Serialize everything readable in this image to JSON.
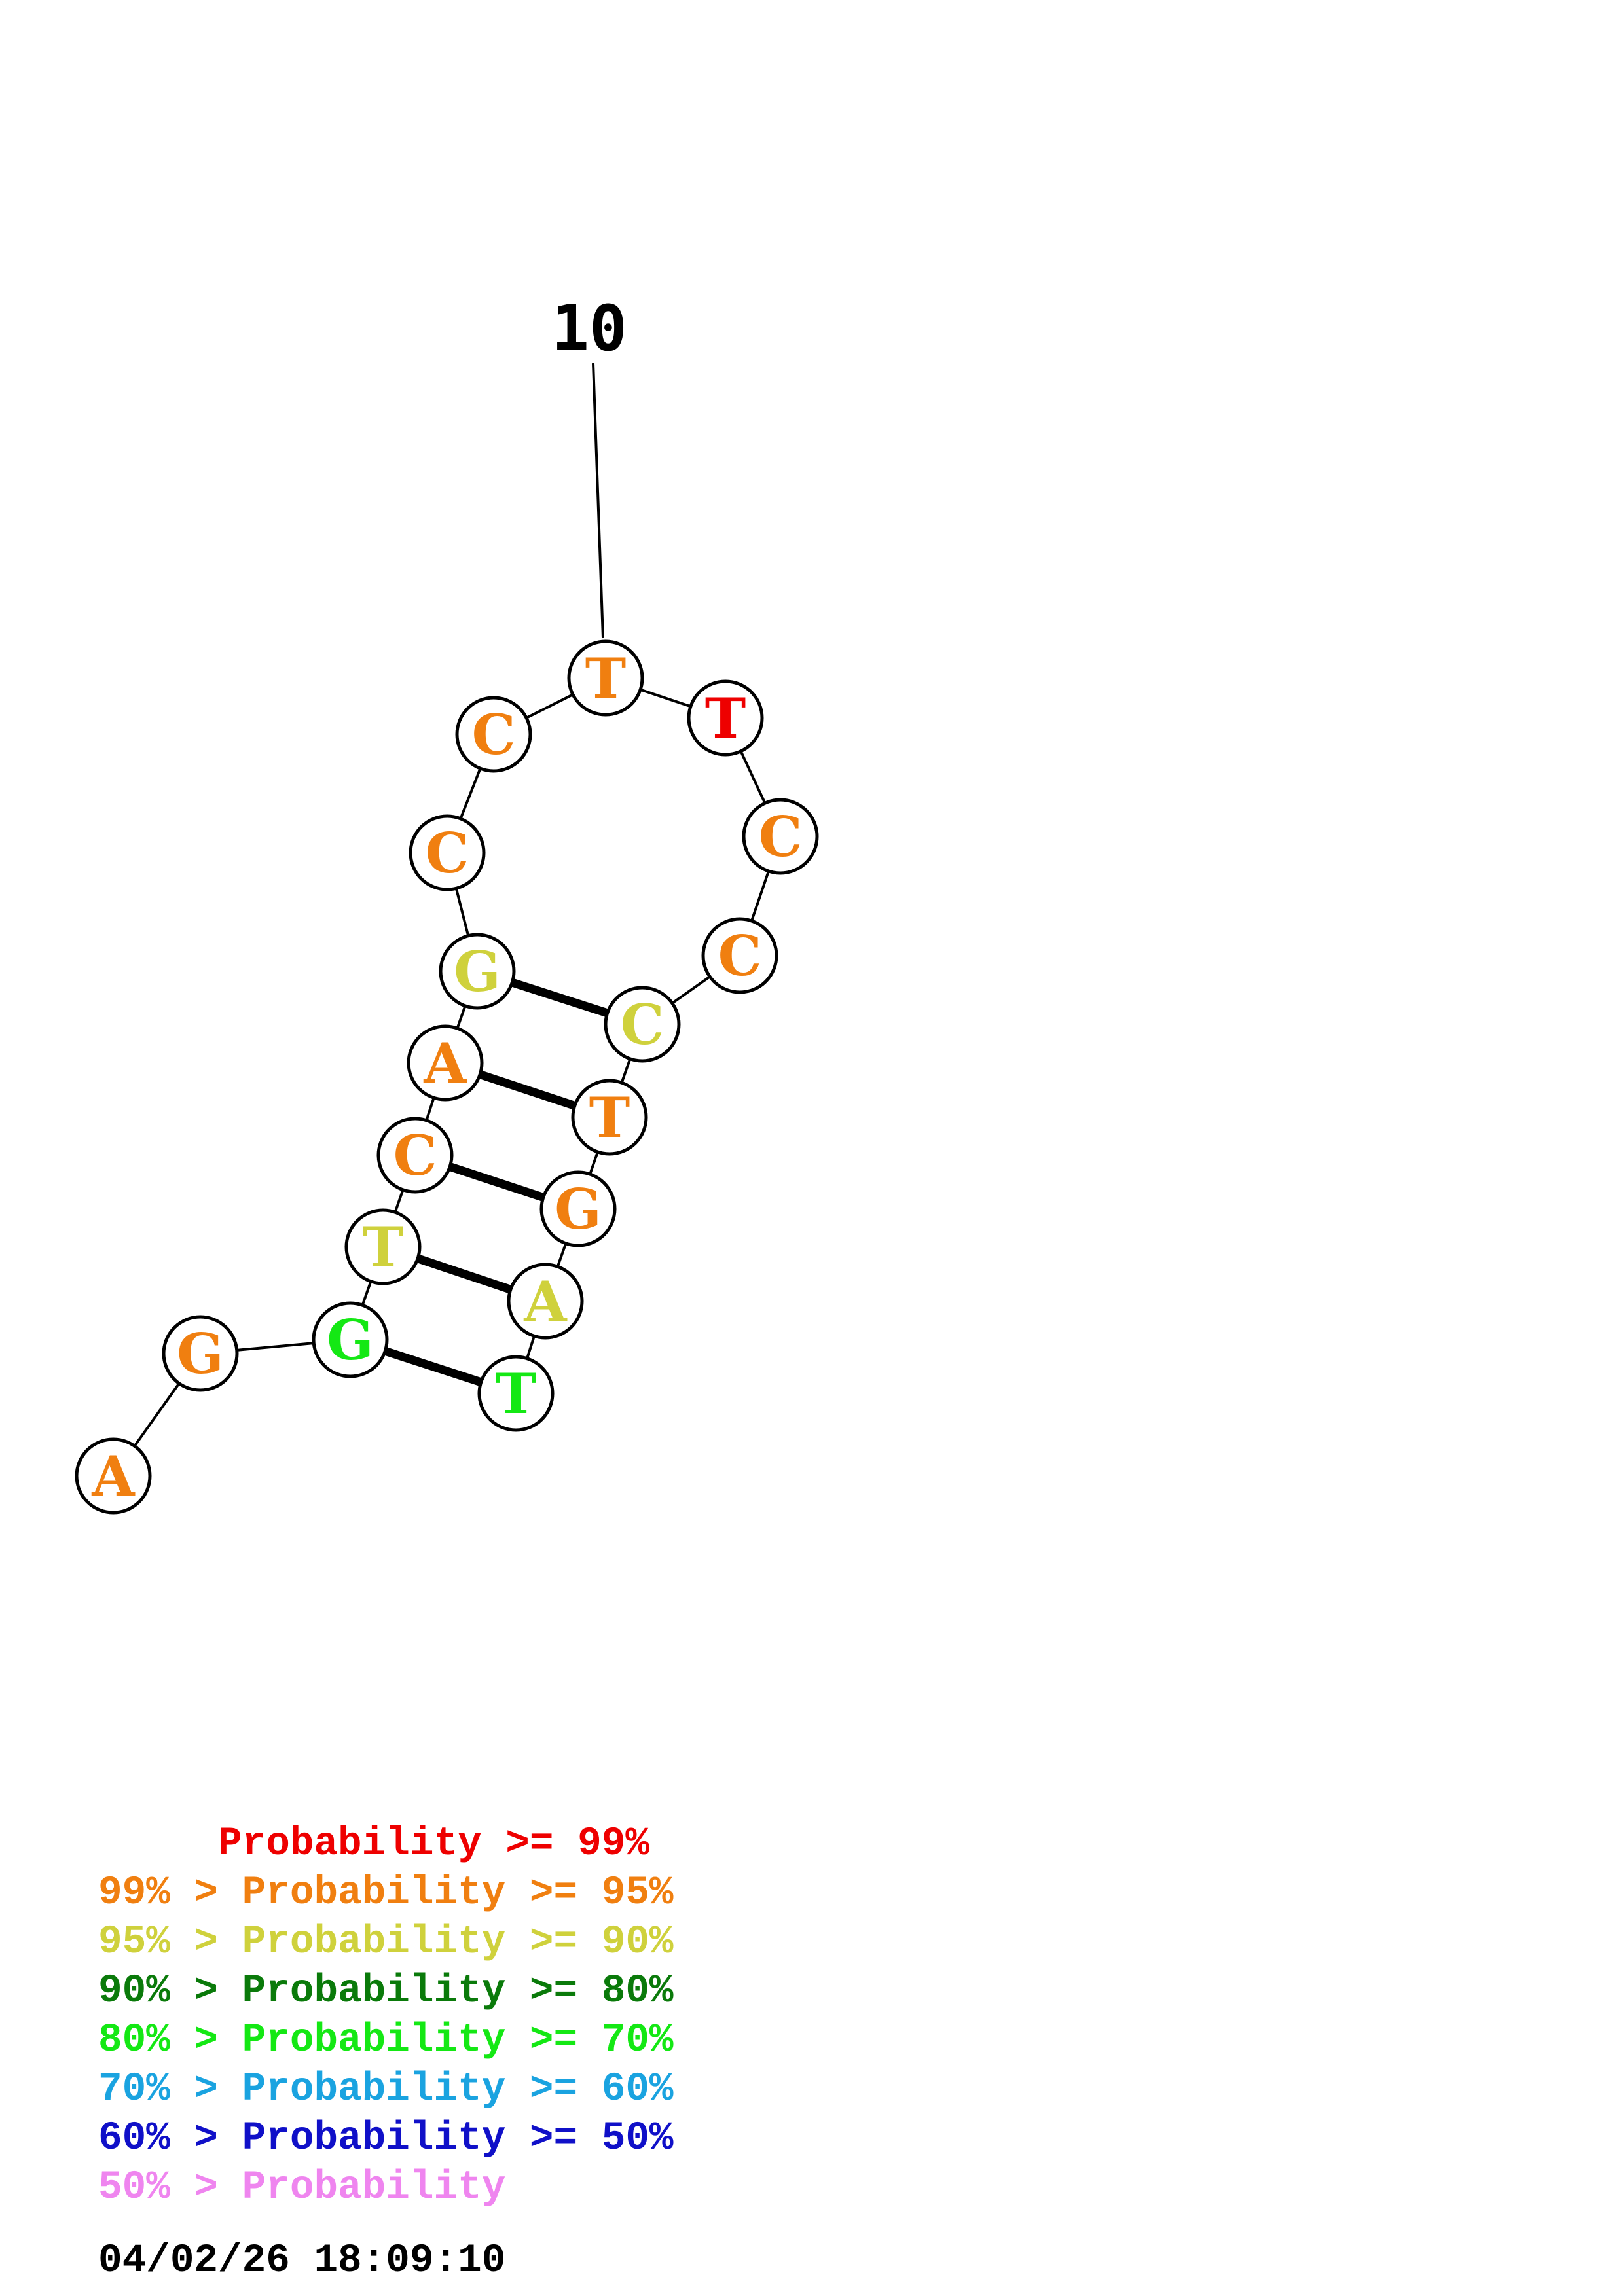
{
  "colors": {
    "p99": "#ee0000",
    "p95": "#f07f10",
    "p90": "#cfd13c",
    "p80": "#0a7a0a",
    "p70": "#14e814",
    "p60": "#1aa3e0",
    "p50": "#1010c8",
    "plow": "#ef85ef"
  },
  "position_label": "10",
  "sequence": [
    {
      "base": "A",
      "prob": "p95"
    },
    {
      "base": "G",
      "prob": "p95"
    },
    {
      "base": "G",
      "prob": "p70"
    },
    {
      "base": "T",
      "prob": "p90"
    },
    {
      "base": "C",
      "prob": "p95"
    },
    {
      "base": "A",
      "prob": "p95"
    },
    {
      "base": "G",
      "prob": "p90"
    },
    {
      "base": "C",
      "prob": "p95"
    },
    {
      "base": "C",
      "prob": "p95"
    },
    {
      "base": "T",
      "prob": "p95"
    },
    {
      "base": "T",
      "prob": "p99"
    },
    {
      "base": "C",
      "prob": "p95"
    },
    {
      "base": "C",
      "prob": "p95"
    },
    {
      "base": "C",
      "prob": "p90"
    },
    {
      "base": "T",
      "prob": "p95"
    },
    {
      "base": "G",
      "prob": "p95"
    },
    {
      "base": "A",
      "prob": "p90"
    },
    {
      "base": "T",
      "prob": "p70"
    }
  ],
  "pairs": [
    [
      3,
      18
    ],
    [
      4,
      17
    ],
    [
      5,
      16
    ],
    [
      6,
      15
    ],
    [
      7,
      14
    ]
  ],
  "legend": [
    {
      "text": "     Probability >= 99%",
      "color": "p99"
    },
    {
      "text": "99% > Probability >= 95%",
      "color": "p95"
    },
    {
      "text": "95% > Probability >= 90%",
      "color": "p90"
    },
    {
      "text": "90% > Probability >= 80%",
      "color": "p80"
    },
    {
      "text": "80% > Probability >= 70%",
      "color": "p70"
    },
    {
      "text": "70% > Probability >= 60%",
      "color": "p60"
    },
    {
      "text": "60% > Probability >= 50%",
      "color": "p50"
    },
    {
      "text": "50% > Probability",
      "color": "plow"
    }
  ],
  "timestamp": "04/02/26 18:09:10"
}
